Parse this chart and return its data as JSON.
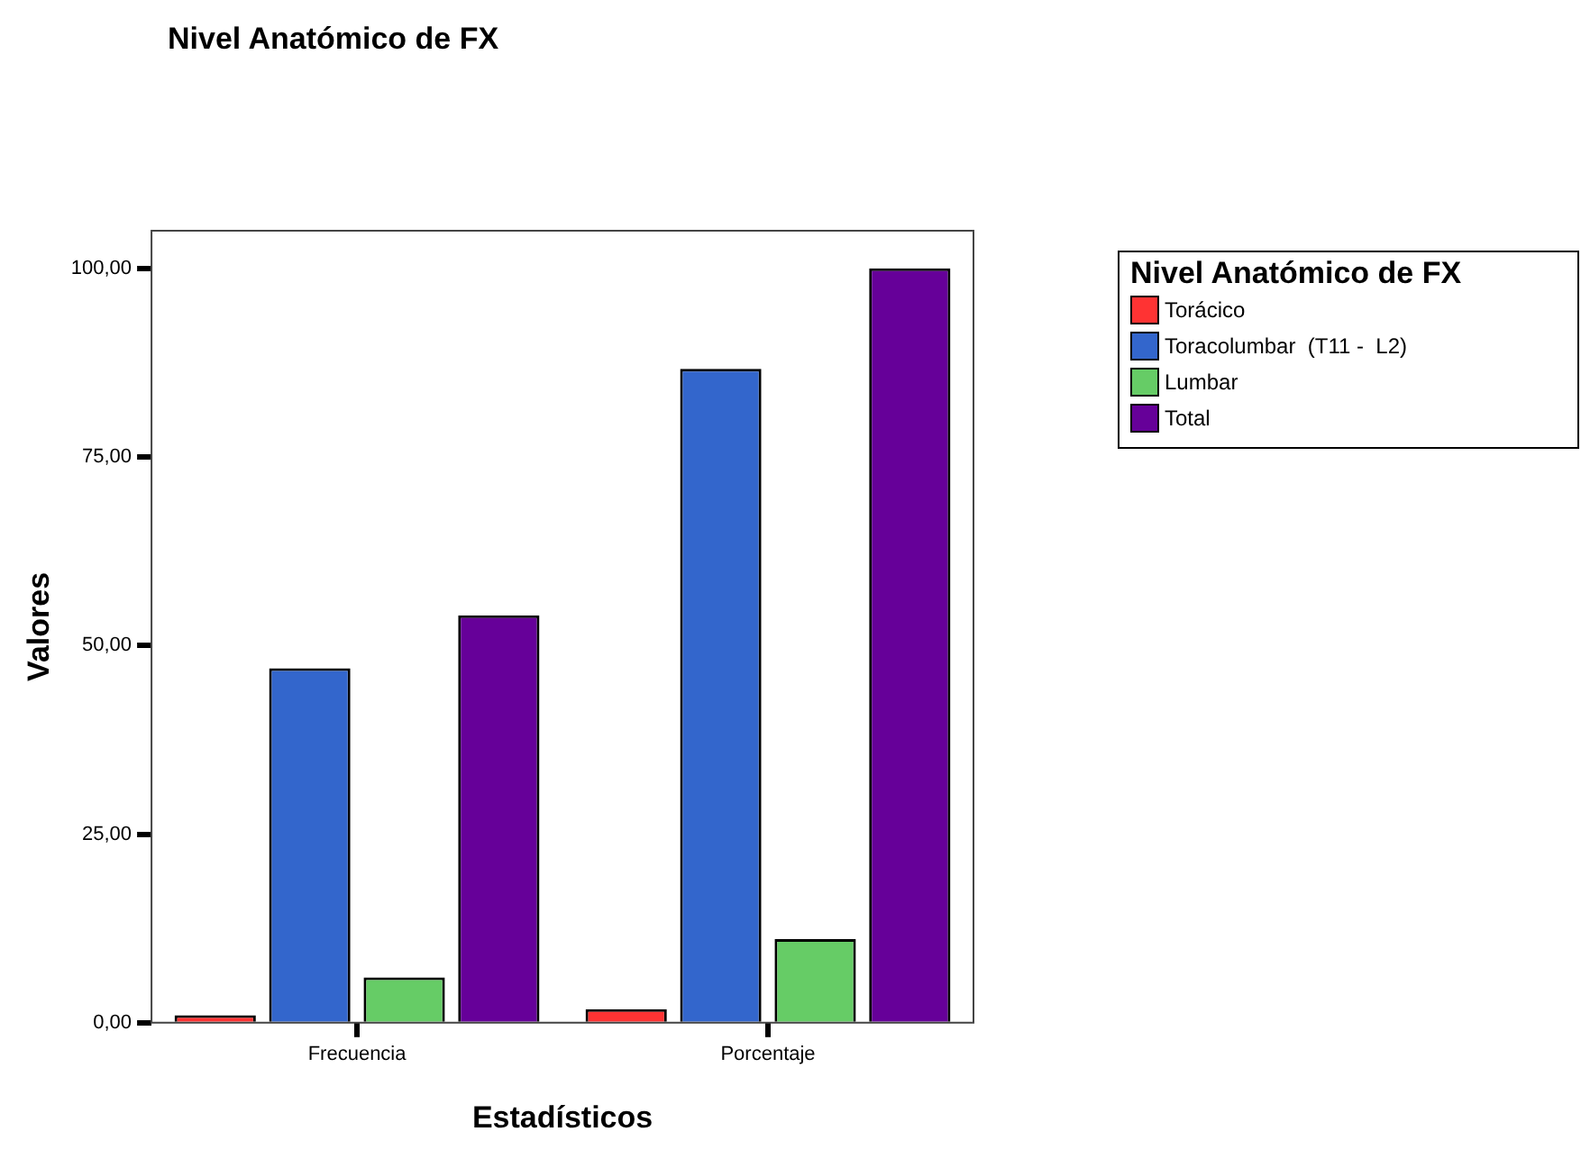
{
  "chart_data": {
    "type": "bar",
    "title": "Nivel Anatómico de FX",
    "xlabel": "Estadísticos",
    "ylabel": "Valores",
    "legend_title": "Nivel Anatómico de FX",
    "categories": [
      "Frecuencia",
      "Porcentaje"
    ],
    "series": [
      {
        "name": "Torácico",
        "color": "#ff3333",
        "values": [
          1,
          1.8
        ]
      },
      {
        "name": "Toracolumbar  (T11 -  L2)",
        "color": "#3366cc",
        "values": [
          47,
          86.7
        ]
      },
      {
        "name": "Lumbar",
        "color": "#66cc66",
        "values": [
          6,
          11.1
        ]
      },
      {
        "name": "Total",
        "color": "#660099",
        "values": [
          54,
          100
        ]
      }
    ],
    "ylim": [
      0,
      105
    ],
    "yticks": [
      {
        "value": 0,
        "label": "0,00"
      },
      {
        "value": 25,
        "label": "25,00"
      },
      {
        "value": 50,
        "label": "50,00"
      },
      {
        "value": 75,
        "label": "75,00"
      },
      {
        "value": 100,
        "label": "100,00"
      }
    ],
    "grid": false,
    "legend": "right"
  }
}
